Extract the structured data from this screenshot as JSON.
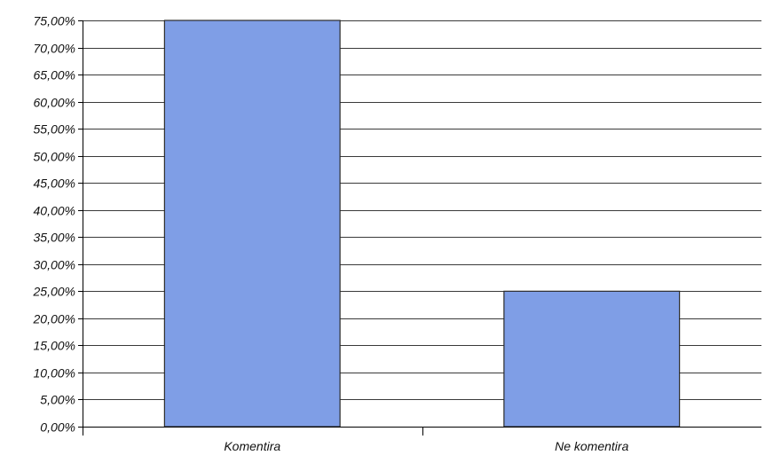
{
  "chart_data": {
    "type": "bar",
    "title": "",
    "xlabel": "",
    "ylabel": "",
    "categories": [
      "Komentira",
      "Ne komentira"
    ],
    "values": [
      75.0,
      25.0
    ],
    "value_unit": "percent",
    "ylim": [
      0,
      75
    ],
    "ytick_step": 5,
    "yticks": [
      "0,00%",
      "5,00%",
      "10,00%",
      "15,00%",
      "20,00%",
      "25,00%",
      "30,00%",
      "35,00%",
      "40,00%",
      "45,00%",
      "50,00%",
      "55,00%",
      "60,00%",
      "65,00%",
      "70,00%",
      "75,00%"
    ],
    "grid": true,
    "legend": "none",
    "bar_color": "#7f9ee6",
    "bar_edge_color": "#2b2b2b",
    "grid_color": "#3a3a3a"
  }
}
